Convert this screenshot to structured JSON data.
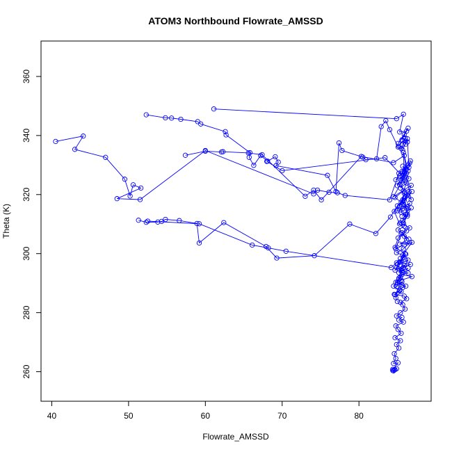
{
  "chart_data": {
    "type": "line",
    "title": "ATOM3 Northbound Flowrate_AMSSD",
    "xlabel": "Flowrate_AMSSD",
    "ylabel": "Theta (K)",
    "xlim": [
      38.6,
      89.4
    ],
    "ylim": [
      250,
      372
    ],
    "xticks": [
      "40",
      "50",
      "60",
      "70",
      "80"
    ],
    "yticks": [
      "260",
      "280",
      "300",
      "320",
      "340",
      "360"
    ],
    "grid": false,
    "legend": "none",
    "line_color": "#0000ff",
    "marker": "open-circle",
    "series": [
      {
        "x": [
          52.3,
          54.8,
          55.6,
          56.8,
          59.0,
          59.4,
          62.6,
          62.7,
          65.8,
          65.7,
          66.3,
          67.2,
          68.1,
          69.1,
          69.5,
          69.2,
          75.9,
          77.0,
          77.4,
          77.8,
          80.5,
          80.9,
          82.3,
          82.9,
          83.5,
          84.0,
          85.1,
          85.7,
          86.3,
          86.5,
          86.7,
          86.4,
          85.8,
          85.9,
          85.3,
          86.0,
          85.7,
          86.9,
          85.6,
          86.2,
          85.5,
          86.3,
          85.4,
          86.6,
          85.6,
          85.9,
          86.2,
          85.3,
          86.6,
          85.8,
          84.9,
          85.7,
          86.0,
          85.3,
          86.7,
          85.8,
          85.2,
          86.4,
          85.6,
          86.9,
          85.5,
          85.0,
          86.1,
          85.7,
          85.3,
          84.6,
          85.9,
          86.2,
          85.4,
          85.7,
          86.0,
          85.4,
          84.9,
          85.6,
          85.2,
          85.8,
          84.8,
          85.1,
          85.5,
          84.7,
          85.4,
          84.9,
          85.2,
          84.6,
          84.8,
          84.5,
          85.1,
          84.4,
          84.9,
          84.6,
          84.4,
          84.7,
          84.5
        ],
        "y": [
          347,
          346,
          345.9,
          345.5,
          344.7,
          343.9,
          341.3,
          340.2,
          334.2,
          332.6,
          329.9,
          333.2,
          331.3,
          332.8,
          331.0,
          329.8,
          326.5,
          321.0,
          337.5,
          334.9,
          332.7,
          331.8,
          332.1,
          343.0,
          345.0,
          342.0,
          336.1,
          335.0,
          338.9,
          329.2,
          331.4,
          328.0,
          334.2,
          325.7,
          323.4,
          320.8,
          318.2,
          321.0,
          316.5,
          315.3,
          314.0,
          312.7,
          310.4,
          308.7,
          307.1,
          305.9,
          304.6,
          303.2,
          303.7,
          301.6,
          300.3,
          299.5,
          298.1,
          297.2,
          296.3,
          295.4,
          294.8,
          293.4,
          292.9,
          292.2,
          291.0,
          290.3,
          289.0,
          288.5,
          287.7,
          286.2,
          285.6,
          284.7,
          283.5,
          282.7,
          281.2,
          280.0,
          278.9,
          278.4,
          277.5,
          276.8,
          275.5,
          274.3,
          273.0,
          271.5,
          270.5,
          269.2,
          268.0,
          266.1,
          264.5,
          262.8,
          263.0,
          260.8,
          261.0,
          260.6,
          260.4,
          260.7,
          260.3
        ]
      },
      {
        "x": [
          40.5,
          44.1,
          43.0,
          47.0,
          49.5,
          50.2,
          50.6,
          51.6,
          48.5,
          51.5,
          60.0,
          74.1,
          74.6,
          76.1,
          77.2,
          78.2,
          84.0,
          85.2,
          86.4,
          85.0,
          86.0,
          84.5,
          86.8,
          85.8,
          86.3,
          85.3,
          86.6,
          85.7,
          86.1,
          85.9,
          85.1,
          86.5,
          85.5,
          84.8,
          85.9,
          86.9,
          85.4,
          86.1,
          85.0,
          86.4,
          85.6,
          85.2,
          84.9,
          85.6,
          84.7,
          85.3
        ],
        "y": [
          338.0,
          339.8,
          335.3,
          332.6,
          325.2,
          319.5,
          323.3,
          322.2,
          318.6,
          318.3,
          334.9,
          320.2,
          321.5,
          320.8,
          320.6,
          319.7,
          318.2,
          327.2,
          330.0,
          323.0,
          326.3,
          319.3,
          323.1,
          316.7,
          319.7,
          314.8,
          317.1,
          311.3,
          313.3,
          309.3,
          308.0,
          304.9,
          306.7,
          301.6,
          303.0,
          303.8,
          298.4,
          299.8,
          296.4,
          297.8,
          294.2,
          291.7,
          288.8,
          290.5,
          286.1,
          287.4
        ]
      },
      {
        "x": [
          51.3,
          52.3,
          53.8,
          54.3,
          54.8,
          56.6,
          58.9,
          59.2,
          62.4,
          67.9,
          69.3,
          74.2,
          78.8,
          82.2,
          84.1,
          85.0,
          85.9,
          84.6,
          85.3,
          86.2,
          85.1,
          84.7,
          86.0,
          85.4,
          84.9,
          85.7,
          85.2,
          84.5,
          85.5,
          84.8,
          85.0
        ],
        "y": [
          311.3,
          310.6,
          310.7,
          310.9,
          311.6,
          311.2,
          310.2,
          303.6,
          310.5,
          302.4,
          298.5,
          299.3,
          310.0,
          306.8,
          312.4,
          316.2,
          318.7,
          314.3,
          310.0,
          307.7,
          305.3,
          302.1,
          300.0,
          297.1,
          295.3,
          293.7,
          291.2,
          289.0,
          287.2,
          285.1,
          283.8
        ]
      },
      {
        "x": [
          57.4,
          60.0,
          62.1,
          62.3,
          65.6,
          67.4,
          73.0,
          74.1,
          75.1,
          80.3,
          84.5,
          85.9,
          86.2,
          85.7,
          86.5,
          85.5,
          86.0,
          86.8,
          85.9,
          85.3,
          86.5,
          85.9,
          86.3,
          85.8,
          86.8,
          85.6
        ],
        "y": [
          333.3,
          334.7,
          334.4,
          334.5,
          334.1,
          333.5,
          319.4,
          321.5,
          318.2,
          332.9,
          330.8,
          333.2,
          327.2,
          329.6,
          325.4,
          324.7,
          327.5,
          318.3,
          320.4,
          316.1,
          321.0,
          318.0,
          313.3,
          310.3,
          315.5,
          312.6
        ]
      },
      {
        "x": [
          61.1,
          84.9,
          85.8,
          85.3,
          86.2,
          85.6,
          86.4,
          85.1,
          85.9,
          86.3,
          85.5,
          86.0,
          85.2,
          85.7,
          86.1
        ],
        "y": [
          349.0,
          345.7,
          347.2,
          341.2,
          341.5,
          338.5,
          342.5,
          337.3,
          340.3,
          337.8,
          335.6,
          339.1,
          336.4,
          338.2,
          337.1
        ]
      },
      {
        "x": [
          68.0,
          70.0,
          83.4,
          85.7,
          84.8,
          86.1,
          85.3,
          86.6,
          85.6,
          86.0,
          85.4,
          86.2,
          85.8,
          84.7,
          85.5,
          86.3,
          85.0
        ],
        "y": [
          331.2,
          328.1,
          332.5,
          326.1,
          325.0,
          328.7,
          326.3,
          330.7,
          327.8,
          324.8,
          322.2,
          323.9,
          321.3,
          319.0,
          317.4,
          315.8,
          314.5
        ]
      },
      {
        "x": [
          52.5,
          59.2,
          66.1,
          68.2,
          70.5,
          84.2,
          84.9,
          85.8,
          84.7,
          85.9,
          85.2,
          86.4,
          85.4,
          84.8,
          85.6
        ],
        "y": [
          311.0,
          310.1,
          302.9,
          301.9,
          300.8,
          295.3,
          296.9,
          298.7,
          294.4,
          296.0,
          293.5,
          295.1,
          292.0,
          290.3,
          289.4
        ]
      }
    ]
  }
}
